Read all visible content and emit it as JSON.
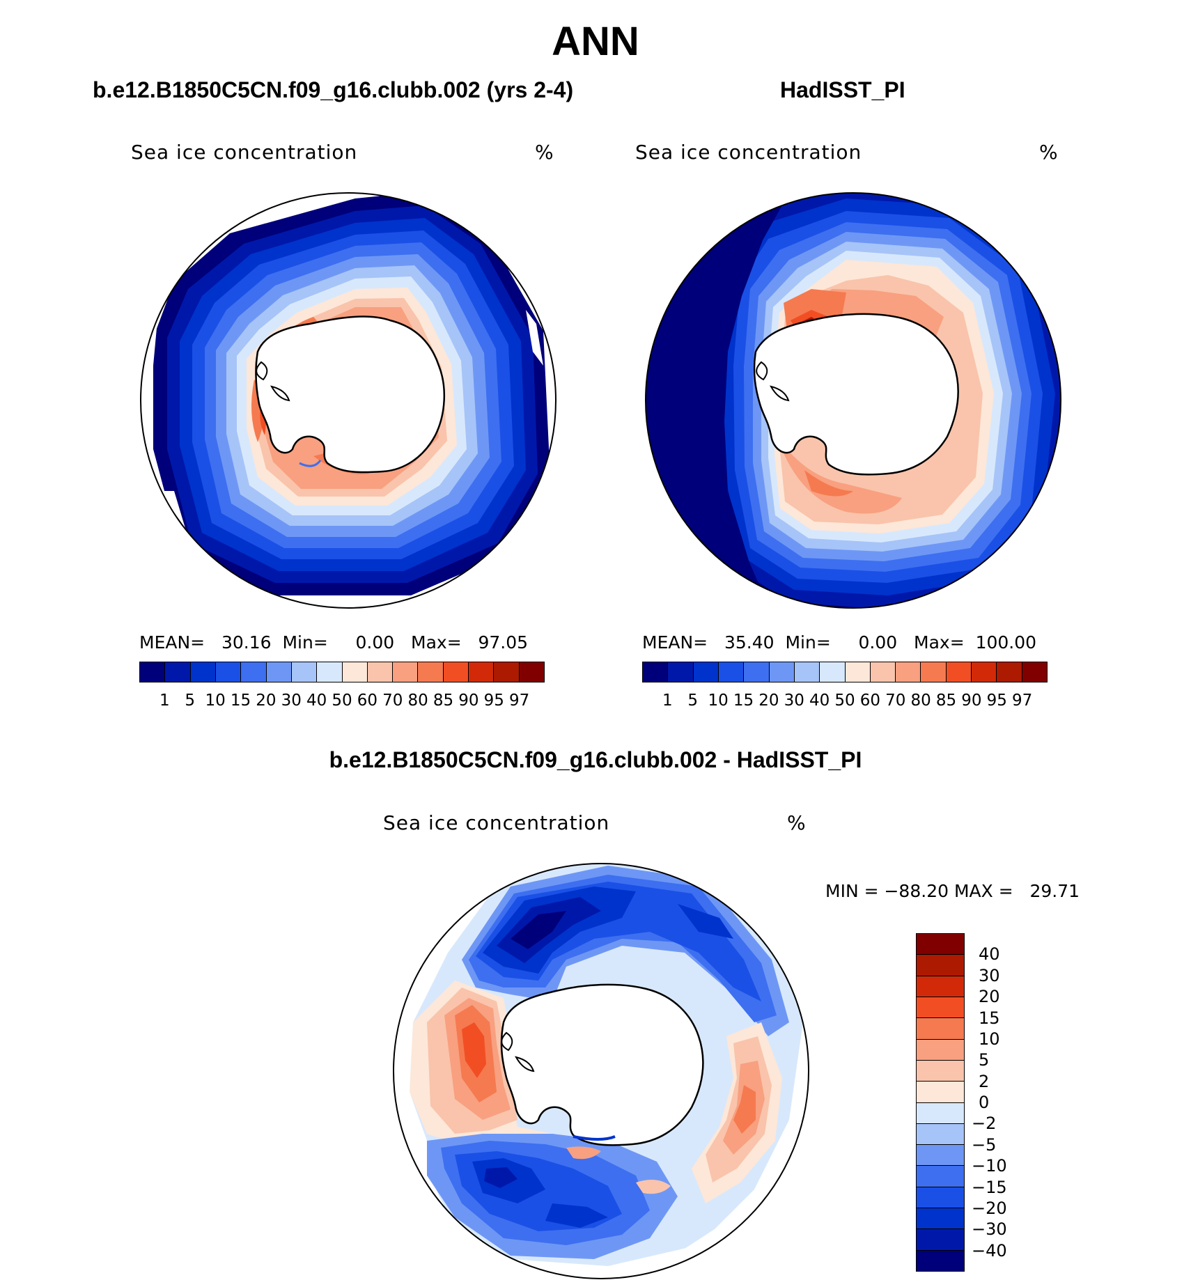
{
  "title": "ANN",
  "panels": [
    {
      "subtitle": "b.e12.B1850C5CN.f09_g16.clubb.002 (yrs 2-4)",
      "left_label": "Sea ice concentration",
      "units": "%",
      "stats": {
        "mean_label": "MEAN=",
        "mean": "30.16",
        "min_label": "Min=",
        "min": "0.00",
        "max_label": "Max=",
        "max": "97.05"
      }
    },
    {
      "subtitle": "HadISST_PI",
      "left_label": "Sea ice concentration",
      "units": "%",
      "stats": {
        "mean_label": "MEAN=",
        "mean": "35.40",
        "min_label": "Min=",
        "min": "0.00",
        "max_label": "Max=",
        "max": "100.00"
      }
    }
  ],
  "diff_panel": {
    "subtitle": "b.e12.B1850C5CN.f09_g16.clubb.002 - HadISST_PI",
    "left_label": "Sea ice concentration",
    "units": "%",
    "minmax": "MIN = −88.20 MAX =   29.71"
  },
  "colorbar": {
    "labels": [
      "1",
      "5",
      "10",
      "15",
      "20",
      "30",
      "40",
      "50",
      "60",
      "70",
      "80",
      "85",
      "90",
      "95",
      "97"
    ],
    "colors": [
      "#00007a",
      "#0018aa",
      "#0033cc",
      "#1a50e6",
      "#3d6ff0",
      "#6e97f5",
      "#a6c4f8",
      "#d8e8fc",
      "#fde7d8",
      "#f9c4ab",
      "#f8a080",
      "#f57a50",
      "#f24e24",
      "#d22a08",
      "#ac1a02",
      "#800000"
    ]
  },
  "diff_colorbar": {
    "labels": [
      "40",
      "30",
      "20",
      "15",
      "10",
      "5",
      "2",
      "0",
      "−2",
      "−5",
      "−10",
      "−15",
      "−20",
      "−30",
      "−40"
    ],
    "colors": [
      "#800000",
      "#ac1a02",
      "#d22a08",
      "#f24e24",
      "#f57a50",
      "#f8a080",
      "#f9c4ab",
      "#fde7d8",
      "#d8e8fc",
      "#a6c4f8",
      "#6e97f5",
      "#3d6ff0",
      "#1a50e6",
      "#0033cc",
      "#0018aa",
      "#00007a"
    ]
  },
  "chart_data": [
    {
      "type": "heatmap",
      "title": "b.e12.B1850C5CN.f09_g16.clubb.002 (yrs 2-4)",
      "variable": "Sea ice concentration",
      "units": "%",
      "projection": "south polar stereographic",
      "mean": 30.16,
      "min": 0.0,
      "max": 97.05,
      "levels": [
        1,
        5,
        10,
        15,
        20,
        30,
        40,
        50,
        60,
        70,
        80,
        85,
        90,
        95,
        97
      ]
    },
    {
      "type": "heatmap",
      "title": "HadISST_PI",
      "variable": "Sea ice concentration",
      "units": "%",
      "projection": "south polar stereographic",
      "mean": 35.4,
      "min": 0.0,
      "max": 100.0,
      "levels": [
        1,
        5,
        10,
        15,
        20,
        30,
        40,
        50,
        60,
        70,
        80,
        85,
        90,
        95,
        97
      ]
    },
    {
      "type": "heatmap",
      "title": "b.e12.B1850C5CN.f09_g16.clubb.002 - HadISST_PI",
      "variable": "Sea ice concentration",
      "units": "%",
      "projection": "south polar stereographic",
      "min": -88.2,
      "max": 29.71,
      "levels": [
        -40,
        -30,
        -20,
        -15,
        -10,
        -5,
        -2,
        0,
        2,
        5,
        10,
        15,
        20,
        30,
        40
      ]
    }
  ]
}
